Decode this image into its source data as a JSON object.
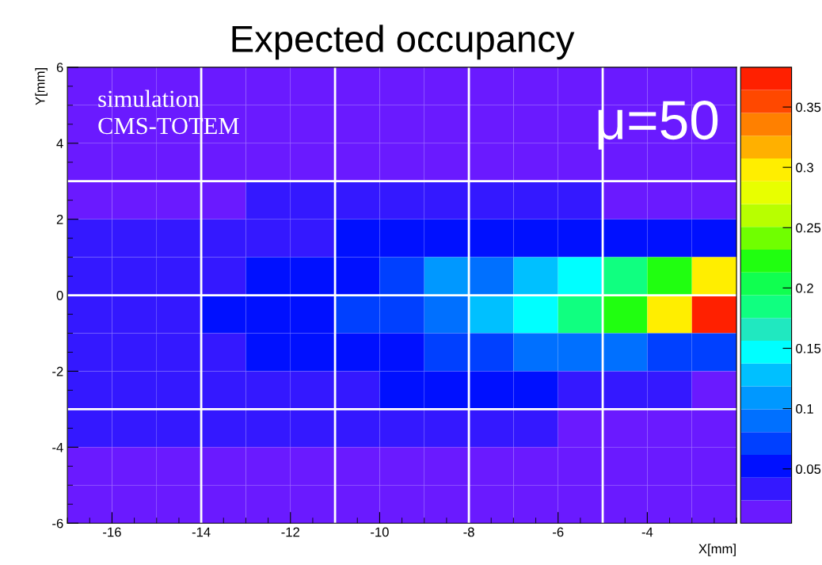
{
  "chart_data": {
    "type": "heatmap",
    "title": "Expected occupancy",
    "xlabel": "X[mm]",
    "ylabel": "Y[mm]",
    "x": [
      -16.5,
      -15.5,
      -14.5,
      -13.5,
      -12.5,
      -11.5,
      -10.5,
      -9.5,
      -8.5,
      -7.5,
      -6.5,
      -5.5,
      -4.5,
      -3.5,
      -2.5
    ],
    "y": [
      5.5,
      4.5,
      3.5,
      2.5,
      1.5,
      0.5,
      -0.5,
      -1.5,
      -2.5,
      -3.5,
      -4.5,
      -5.5
    ],
    "cells": [
      [
        0.014,
        0.014,
        0.014,
        0.014,
        0.014,
        0.014,
        0.014,
        0.014,
        0.014,
        0.014,
        0.014,
        0.014,
        0.014,
        0.014,
        0.014
      ],
      [
        0.014,
        0.014,
        0.014,
        0.014,
        0.014,
        0.014,
        0.014,
        0.014,
        0.014,
        0.014,
        0.014,
        0.014,
        0.014,
        0.014,
        0.014
      ],
      [
        0.014,
        0.014,
        0.014,
        0.014,
        0.014,
        0.014,
        0.014,
        0.014,
        0.014,
        0.014,
        0.014,
        0.014,
        0.014,
        0.014,
        0.014
      ],
      [
        0.014,
        0.014,
        0.014,
        0.014,
        0.033,
        0.033,
        0.033,
        0.033,
        0.033,
        0.033,
        0.033,
        0.033,
        0.014,
        0.014,
        0.014
      ],
      [
        0.033,
        0.033,
        0.033,
        0.033,
        0.033,
        0.033,
        0.052,
        0.052,
        0.052,
        0.052,
        0.052,
        0.052,
        0.052,
        0.052,
        0.052
      ],
      [
        0.033,
        0.033,
        0.033,
        0.033,
        0.052,
        0.052,
        0.052,
        0.071,
        0.109,
        0.09,
        0.128,
        0.146,
        0.184,
        0.222,
        0.298
      ],
      [
        0.033,
        0.033,
        0.033,
        0.052,
        0.052,
        0.052,
        0.071,
        0.071,
        0.09,
        0.128,
        0.146,
        0.184,
        0.222,
        0.298,
        0.373
      ],
      [
        0.033,
        0.033,
        0.033,
        0.033,
        0.052,
        0.052,
        0.052,
        0.052,
        0.071,
        0.071,
        0.09,
        0.09,
        0.09,
        0.071,
        0.071
      ],
      [
        0.033,
        0.033,
        0.033,
        0.033,
        0.033,
        0.033,
        0.033,
        0.052,
        0.052,
        0.052,
        0.052,
        0.033,
        0.033,
        0.033,
        0.014
      ],
      [
        0.033,
        0.033,
        0.033,
        0.033,
        0.033,
        0.033,
        0.033,
        0.033,
        0.033,
        0.033,
        0.033,
        0.014,
        0.014,
        0.014,
        0.014
      ],
      [
        0.014,
        0.014,
        0.014,
        0.014,
        0.014,
        0.014,
        0.014,
        0.014,
        0.014,
        0.014,
        0.014,
        0.014,
        0.014,
        0.014,
        0.014
      ],
      [
        0.014,
        0.014,
        0.014,
        0.014,
        0.014,
        0.014,
        0.014,
        0.014,
        0.014,
        0.014,
        0.014,
        0.014,
        0.014,
        0.014,
        0.014
      ]
    ],
    "xlim": [
      -17,
      -2
    ],
    "xticks": [
      -16,
      -14,
      -12,
      -10,
      -8,
      -6,
      -4
    ],
    "ylim": [
      -6,
      6
    ],
    "yticks": [
      -6,
      -4,
      -2,
      0,
      2,
      4,
      6
    ],
    "clim": [
      0.005,
      0.383
    ],
    "cticks": [
      0.05,
      0.1,
      0.15,
      0.2,
      0.25,
      0.3,
      0.35
    ],
    "ref_lines": [
      {
        "axis": "y",
        "value": 3,
        "color": "#ffffff"
      },
      {
        "axis": "y",
        "value": 0,
        "color": "#ffffff"
      },
      {
        "axis": "y",
        "value": -3,
        "color": "#ffffff"
      },
      {
        "axis": "x",
        "value": -14,
        "color": "#ffffff"
      },
      {
        "axis": "x",
        "value": -11,
        "color": "#ffffff"
      },
      {
        "axis": "x",
        "value": -8,
        "color": "#ffffff"
      },
      {
        "axis": "x",
        "value": -5,
        "color": "#ffffff"
      }
    ],
    "annotations": [
      "simulation\nCMS-TOTEM",
      "μ=50"
    ]
  }
}
